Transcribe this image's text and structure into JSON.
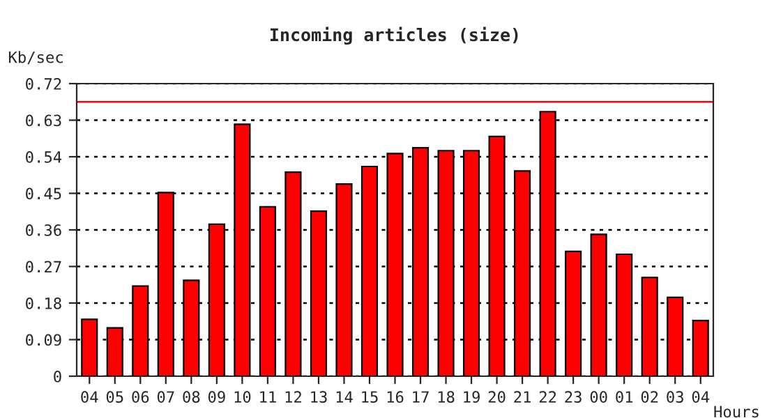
{
  "chart_data": {
    "type": "bar",
    "title": "Incoming articles (size)",
    "xlabel": "Hours",
    "ylabel": "Kb/sec",
    "categories": [
      "04",
      "05",
      "06",
      "07",
      "08",
      "09",
      "10",
      "11",
      "12",
      "13",
      "14",
      "15",
      "16",
      "17",
      "18",
      "19",
      "20",
      "21",
      "22",
      "23",
      "00",
      "01",
      "02",
      "03",
      "04"
    ],
    "values": [
      0.14,
      0.119,
      0.222,
      0.452,
      0.236,
      0.374,
      0.62,
      0.417,
      0.502,
      0.406,
      0.473,
      0.516,
      0.548,
      0.562,
      0.555,
      0.555,
      0.59,
      0.505,
      0.651,
      0.307,
      0.349,
      0.3,
      0.243,
      0.194,
      0.137
    ],
    "color": "#ff0000",
    "ylim": [
      0,
      0.72
    ],
    "yticks": [
      0,
      0.09,
      0.18,
      0.27,
      0.36,
      0.45,
      0.54,
      0.63,
      0.72
    ],
    "grid": "y",
    "ref_lines": [
      {
        "axis": "y",
        "value": 0.675,
        "color": "#ff0000",
        "line_style": "solid"
      }
    ]
  }
}
